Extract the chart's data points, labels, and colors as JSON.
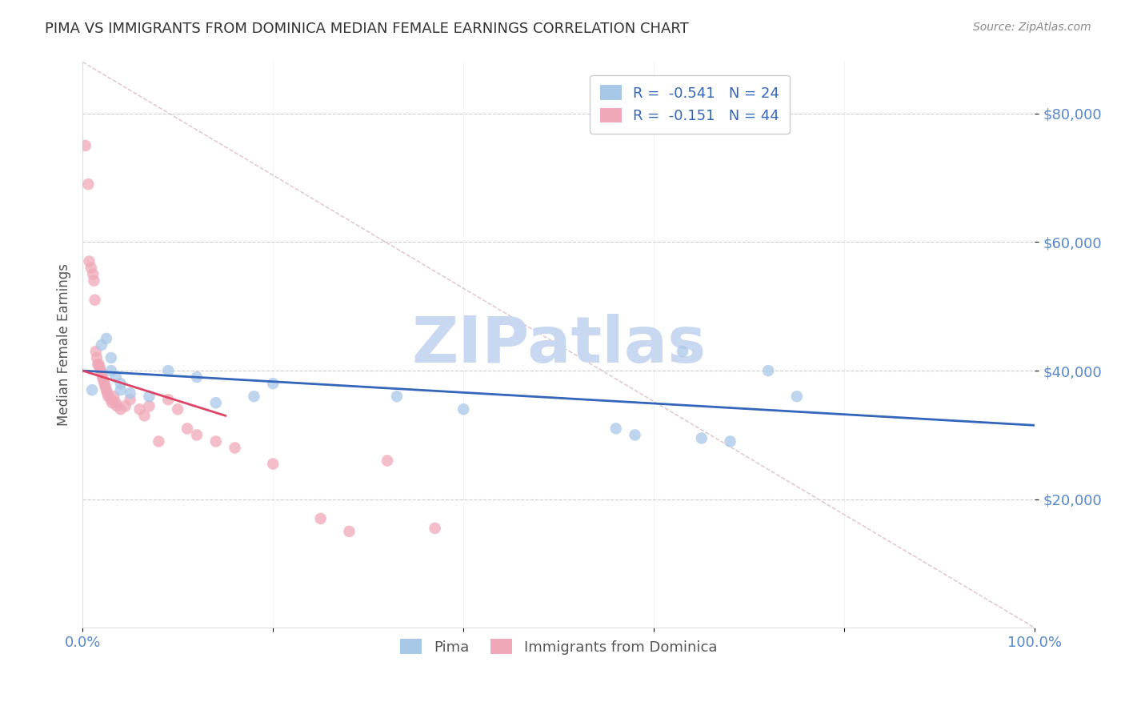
{
  "title": "PIMA VS IMMIGRANTS FROM DOMINICA MEDIAN FEMALE EARNINGS CORRELATION CHART",
  "source": "Source: ZipAtlas.com",
  "xlabel": "",
  "ylabel": "Median Female Earnings",
  "watermark": "ZIPatlas",
  "legend_blue_label": "R =  -0.541   N = 24",
  "legend_pink_label": "R =  -0.151   N = 44",
  "legend_bottom_blue": "Pima",
  "legend_bottom_pink": "Immigrants from Dominica",
  "xmin": 0.0,
  "xmax": 1.0,
  "ymin": 0,
  "ymax": 88000,
  "yticks": [
    20000,
    40000,
    60000,
    80000
  ],
  "ytick_labels": [
    "$20,000",
    "$40,000",
    "$60,000",
    "$80,000"
  ],
  "xticks": [
    0.0,
    0.2,
    0.4,
    0.6,
    0.8,
    1.0
  ],
  "xtick_labels": [
    "0.0%",
    "",
    "",
    "",
    "",
    "100.0%"
  ],
  "blue_color": "#a8c8e8",
  "pink_color": "#f0a8b8",
  "blue_line_color": "#3366bb",
  "pink_line_color": "#dd4466",
  "ref_line_color": "#e0c0c8",
  "grid_color": "#cccccc",
  "title_color": "#333333",
  "axis_tick_color": "#5588cc",
  "watermark_color": "#c8d8f0",
  "blue_points_x": [
    0.01,
    0.02,
    0.025,
    0.03,
    0.03,
    0.035,
    0.04,
    0.04,
    0.05,
    0.07,
    0.09,
    0.12,
    0.14,
    0.18,
    0.2,
    0.33,
    0.4,
    0.56,
    0.58,
    0.63,
    0.65,
    0.68,
    0.72,
    0.75
  ],
  "blue_points_y": [
    37000,
    44000,
    45000,
    42000,
    40000,
    39000,
    38000,
    37000,
    36500,
    36000,
    40000,
    39000,
    35000,
    36000,
    38000,
    36000,
    34000,
    31000,
    30000,
    43000,
    29500,
    29000,
    40000,
    36000
  ],
  "pink_points_x": [
    0.003,
    0.006,
    0.007,
    0.009,
    0.011,
    0.012,
    0.013,
    0.014,
    0.015,
    0.016,
    0.017,
    0.018,
    0.019,
    0.02,
    0.021,
    0.022,
    0.023,
    0.024,
    0.025,
    0.026,
    0.027,
    0.03,
    0.031,
    0.033,
    0.035,
    0.036,
    0.04,
    0.045,
    0.05,
    0.06,
    0.065,
    0.07,
    0.08,
    0.09,
    0.1,
    0.11,
    0.12,
    0.14,
    0.16,
    0.2,
    0.25,
    0.28,
    0.32,
    0.37
  ],
  "pink_points_y": [
    75000,
    69000,
    57000,
    56000,
    55000,
    54000,
    51000,
    43000,
    42000,
    41000,
    41000,
    40500,
    40000,
    39500,
    39000,
    38500,
    38000,
    37500,
    37000,
    36500,
    36000,
    35500,
    35000,
    36000,
    35000,
    34500,
    34000,
    34500,
    35500,
    34000,
    33000,
    34500,
    29000,
    35500,
    34000,
    31000,
    30000,
    29000,
    28000,
    25500,
    17000,
    15000,
    26000,
    15500
  ],
  "blue_trend_x": [
    0.0,
    1.0
  ],
  "blue_trend_y": [
    40000,
    31500
  ],
  "pink_trend_x": [
    0.0,
    0.15
  ],
  "pink_trend_y": [
    40000,
    33000
  ],
  "ref_line_x": [
    0.0,
    1.0
  ],
  "ref_line_y": [
    88000,
    0
  ]
}
